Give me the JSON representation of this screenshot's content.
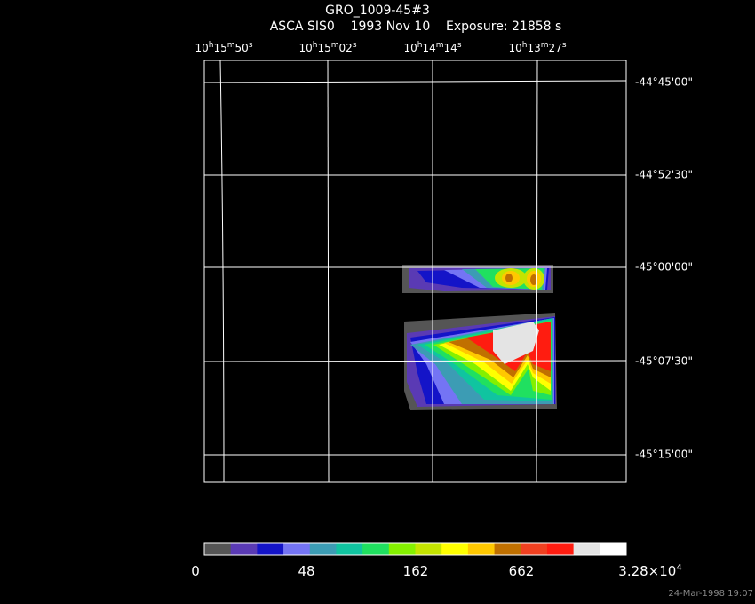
{
  "header": {
    "title": "GRO_1009-45#3",
    "subtitle": "ASCA SIS0    1993 Nov 10    Exposure: 21858 s"
  },
  "ra_labels": [
    [
      "10",
      "h",
      "15",
      "m",
      "50",
      "s"
    ],
    [
      "10",
      "h",
      "15",
      "m",
      "02",
      "s"
    ],
    [
      "10",
      "h",
      "14",
      "m",
      "14",
      "s"
    ],
    [
      "10",
      "h",
      "13",
      "m",
      "27",
      "s"
    ]
  ],
  "dec_labels": [
    "-44°45'00\"",
    "-44°52'30\"",
    "-45°00'00\"",
    "-45°07'30\"",
    "-45°15'00\""
  ],
  "colorbar": {
    "colors": [
      "#555555",
      "#5a3ab4",
      "#1414c8",
      "#7474f4",
      "#3c9cb4",
      "#10c4a0",
      "#20e060",
      "#84f000",
      "#c4e400",
      "#ffff00",
      "#ffc800",
      "#c07000",
      "#f04020",
      "#ff1c10",
      "#e4e4e4",
      "#ffffff"
    ],
    "labels": [
      [
        "0"
      ],
      [
        "48"
      ],
      [
        "162"
      ],
      [
        "662"
      ],
      [
        "3.28×10",
        "4"
      ]
    ]
  },
  "timestamp": "24-Mar-1998 19:07"
}
